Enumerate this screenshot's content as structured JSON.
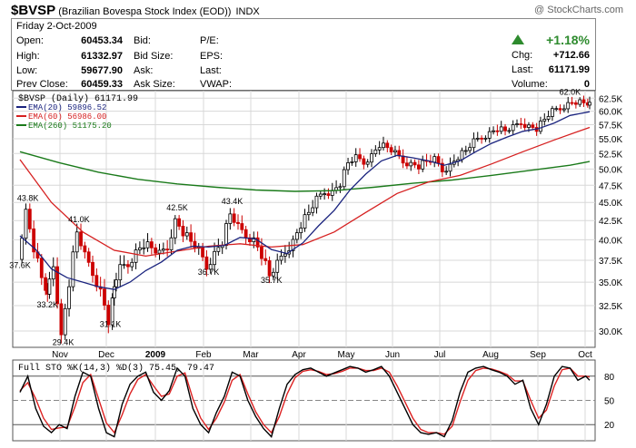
{
  "header": {
    "symbol": "$BVSP",
    "name": "(Brazilian Bovespa Stock Index (EOD))",
    "exchange": "INDX",
    "credit": "@ StockCharts.com"
  },
  "quote": {
    "date": "Friday  2-Oct-2009",
    "open_label": "Open:",
    "open": "60453.34",
    "high_label": "High:",
    "high": "61332.97",
    "low_label": "Low:",
    "low": "59677.90",
    "prev_label": "Prev Close:",
    "prev": "60459.33",
    "bid_label": "Bid:",
    "bidsize_label": "Bid Size:",
    "ask_label": "Ask:",
    "asksize_label": "Ask Size:",
    "pe_label": "P/E:",
    "eps_label": "EPS:",
    "last_label": "Last:",
    "vwap_label": "VWAP:",
    "pct_change": "+1.18%",
    "chg_label": "Chg:",
    "chg": "+712.66",
    "last2_label": "Last:",
    "last": "61171.99",
    "volume_label": "Volume:",
    "volume": "0"
  },
  "colors": {
    "up_candle": "#000000",
    "down_candle": "#cc0000",
    "ema20": "#1a237e",
    "ema60": "#d62020",
    "ema260": "#1a7a1a",
    "sto_k": "#000000",
    "sto_d": "#dd2222",
    "grid": "#d8d8d8"
  },
  "chart_data": [
    {
      "type": "line",
      "title": "$BVSP (Daily) 61171.99",
      "ylim": [
        28.5,
        64.0
      ],
      "yscale": "log",
      "y_ticks": [
        "62.5K",
        "60.0K",
        "57.5K",
        "55.0K",
        "52.5K",
        "50.0K",
        "47.5K",
        "45.0K",
        "42.5K",
        "40.0K",
        "37.5K",
        "35.0K",
        "32.5K",
        "30.0K"
      ],
      "y_tick_values": [
        62.5,
        60.0,
        57.5,
        55.0,
        52.5,
        50.0,
        47.5,
        45.0,
        42.5,
        40.0,
        37.5,
        35.0,
        32.5,
        30.0
      ],
      "x_ticks": [
        "Nov",
        "Dec",
        "2009",
        "Feb",
        "Mar",
        "Apr",
        "May",
        "Jun",
        "Jul",
        "Aug",
        "Sep",
        "Oct"
      ],
      "legend": [
        {
          "name": "EMA(20)",
          "value": "59896.52"
        },
        {
          "name": "EMA(60)",
          "value": "56986.00"
        },
        {
          "name": "EMA(260)",
          "value": "51175.20"
        }
      ],
      "annotations": [
        "43.8K",
        "41.0K",
        "37.6K",
        "33.2K",
        "29.4K",
        "31.1K",
        "42.5K",
        "43.4K",
        "36.7K",
        "35.7K",
        "62.0K"
      ],
      "price": [
        [
          0,
          37.6
        ],
        [
          2,
          43.8
        ],
        [
          4,
          39.0
        ],
        [
          6,
          35.5
        ],
        [
          7,
          33.2
        ],
        [
          9,
          37.0
        ],
        [
          11,
          29.4
        ],
        [
          13,
          35.0
        ],
        [
          15,
          41.0
        ],
        [
          17,
          38.0
        ],
        [
          19,
          36.0
        ],
        [
          21,
          34.0
        ],
        [
          23,
          31.1
        ],
        [
          24,
          34.5
        ],
        [
          26,
          36.5
        ],
        [
          28,
          37.0
        ],
        [
          30,
          38.5
        ],
        [
          32,
          39.5
        ],
        [
          34,
          39.0
        ],
        [
          36,
          38.2
        ],
        [
          38,
          39.0
        ],
        [
          40,
          42.5
        ],
        [
          42,
          41.0
        ],
        [
          44,
          39.8
        ],
        [
          46,
          38.6
        ],
        [
          48,
          36.7
        ],
        [
          50,
          38.3
        ],
        [
          52,
          39.8
        ],
        [
          54,
          43.4
        ],
        [
          56,
          41.6
        ],
        [
          58,
          40.5
        ],
        [
          60,
          40.0
        ],
        [
          62,
          38.2
        ],
        [
          64,
          35.7
        ],
        [
          66,
          37.0
        ],
        [
          68,
          38.5
        ],
        [
          70,
          39.8
        ],
        [
          72,
          42.0
        ],
        [
          74,
          43.6
        ],
        [
          76,
          45.4
        ],
        [
          78,
          46.5
        ],
        [
          80,
          46.5
        ],
        [
          82,
          47.8
        ],
        [
          84,
          51.0
        ],
        [
          86,
          51.8
        ],
        [
          88,
          51.0
        ],
        [
          90,
          52.2
        ],
        [
          92,
          54.0
        ],
        [
          94,
          53.5
        ],
        [
          96,
          52.5
        ],
        [
          98,
          51.2
        ],
        [
          100,
          50.8
        ],
        [
          102,
          50.5
        ],
        [
          104,
          51.2
        ],
        [
          106,
          51.5
        ],
        [
          108,
          49.8
        ],
        [
          110,
          50.5
        ],
        [
          112,
          52.0
        ],
        [
          114,
          53.0
        ],
        [
          116,
          54.5
        ],
        [
          118,
          55.2
        ],
        [
          120,
          56.0
        ],
        [
          122,
          56.8
        ],
        [
          124,
          56.4
        ],
        [
          126,
          57.0
        ],
        [
          128,
          57.8
        ],
        [
          130,
          57.2
        ],
        [
          132,
          56.8
        ],
        [
          134,
          58.5
        ],
        [
          136,
          60.0
        ],
        [
          138,
          60.5
        ],
        [
          140,
          61.4
        ],
        [
          142,
          61.8
        ],
        [
          144,
          61.6
        ],
        [
          145,
          61.2
        ]
      ],
      "ema20": [
        [
          0,
          40.5
        ],
        [
          4,
          38.8
        ],
        [
          8,
          36.5
        ],
        [
          12,
          35.5
        ],
        [
          16,
          35.0
        ],
        [
          20,
          34.5
        ],
        [
          24,
          34.2
        ],
        [
          28,
          35.0
        ],
        [
          32,
          36.3
        ],
        [
          36,
          37.3
        ],
        [
          40,
          38.7
        ],
        [
          44,
          39.2
        ],
        [
          48,
          39.1
        ],
        [
          52,
          39.3
        ],
        [
          56,
          40.3
        ],
        [
          60,
          40.1
        ],
        [
          64,
          38.8
        ],
        [
          68,
          38.3
        ],
        [
          72,
          39.6
        ],
        [
          76,
          41.8
        ],
        [
          80,
          43.9
        ],
        [
          84,
          46.8
        ],
        [
          88,
          49.2
        ],
        [
          92,
          51.3
        ],
        [
          96,
          52.2
        ],
        [
          100,
          51.8
        ],
        [
          104,
          51.3
        ],
        [
          108,
          50.6
        ],
        [
          112,
          51.3
        ],
        [
          116,
          52.8
        ],
        [
          120,
          54.2
        ],
        [
          124,
          55.3
        ],
        [
          128,
          56.3
        ],
        [
          132,
          56.8
        ],
        [
          136,
          57.8
        ],
        [
          140,
          59.2
        ],
        [
          145,
          59.9
        ]
      ],
      "ema60": [
        [
          0,
          51.5
        ],
        [
          8,
          45.0
        ],
        [
          16,
          41.0
        ],
        [
          24,
          38.7
        ],
        [
          32,
          38.0
        ],
        [
          40,
          38.6
        ],
        [
          48,
          39.2
        ],
        [
          56,
          39.5
        ],
        [
          64,
          39.1
        ],
        [
          72,
          39.4
        ],
        [
          80,
          41.0
        ],
        [
          88,
          43.6
        ],
        [
          96,
          46.3
        ],
        [
          104,
          48.0
        ],
        [
          112,
          49.0
        ],
        [
          120,
          50.8
        ],
        [
          128,
          52.8
        ],
        [
          136,
          54.8
        ],
        [
          145,
          57.0
        ]
      ],
      "ema260": [
        [
          0,
          52.8
        ],
        [
          10,
          51.0
        ],
        [
          20,
          49.5
        ],
        [
          30,
          48.4
        ],
        [
          40,
          47.7
        ],
        [
          50,
          47.2
        ],
        [
          60,
          46.8
        ],
        [
          70,
          46.6
        ],
        [
          80,
          46.7
        ],
        [
          90,
          47.2
        ],
        [
          100,
          47.8
        ],
        [
          110,
          48.3
        ],
        [
          120,
          49.0
        ],
        [
          130,
          49.8
        ],
        [
          140,
          50.6
        ],
        [
          145,
          51.2
        ]
      ]
    },
    {
      "type": "line",
      "title": "Full STO %K(14,3) %D(3) 75.45, 79.47",
      "ylim": [
        0,
        100
      ],
      "y_ticks": [
        "80",
        "50",
        "20"
      ],
      "y_tick_values": [
        80,
        50,
        20
      ],
      "series_k": [
        [
          0,
          60
        ],
        [
          2,
          80
        ],
        [
          4,
          40
        ],
        [
          6,
          18
        ],
        [
          8,
          10
        ],
        [
          10,
          20
        ],
        [
          12,
          15
        ],
        [
          14,
          55
        ],
        [
          16,
          85
        ],
        [
          18,
          80
        ],
        [
          20,
          40
        ],
        [
          22,
          10
        ],
        [
          24,
          5
        ],
        [
          26,
          45
        ],
        [
          28,
          70
        ],
        [
          30,
          80
        ],
        [
          32,
          85
        ],
        [
          34,
          60
        ],
        [
          36,
          50
        ],
        [
          38,
          62
        ],
        [
          40,
          90
        ],
        [
          42,
          80
        ],
        [
          44,
          40
        ],
        [
          46,
          20
        ],
        [
          48,
          10
        ],
        [
          50,
          35
        ],
        [
          52,
          55
        ],
        [
          54,
          85
        ],
        [
          56,
          80
        ],
        [
          58,
          50
        ],
        [
          60,
          30
        ],
        [
          62,
          15
        ],
        [
          64,
          5
        ],
        [
          66,
          40
        ],
        [
          68,
          70
        ],
        [
          70,
          82
        ],
        [
          72,
          88
        ],
        [
          74,
          90
        ],
        [
          76,
          85
        ],
        [
          78,
          80
        ],
        [
          80,
          84
        ],
        [
          82,
          88
        ],
        [
          84,
          92
        ],
        [
          86,
          90
        ],
        [
          88,
          85
        ],
        [
          90,
          88
        ],
        [
          92,
          92
        ],
        [
          94,
          80
        ],
        [
          96,
          60
        ],
        [
          98,
          40
        ],
        [
          100,
          20
        ],
        [
          102,
          10
        ],
        [
          104,
          8
        ],
        [
          106,
          10
        ],
        [
          108,
          5
        ],
        [
          110,
          25
        ],
        [
          112,
          60
        ],
        [
          114,
          85
        ],
        [
          116,
          90
        ],
        [
          118,
          92
        ],
        [
          120,
          88
        ],
        [
          122,
          85
        ],
        [
          124,
          80
        ],
        [
          126,
          70
        ],
        [
          128,
          75
        ],
        [
          130,
          40
        ],
        [
          132,
          20
        ],
        [
          134,
          45
        ],
        [
          136,
          80
        ],
        [
          138,
          92
        ],
        [
          140,
          90
        ],
        [
          142,
          75
        ],
        [
          144,
          80
        ],
        [
          145,
          75
        ]
      ],
      "series_d": [
        [
          0,
          62
        ],
        [
          2,
          72
        ],
        [
          4,
          52
        ],
        [
          6,
          28
        ],
        [
          8,
          14
        ],
        [
          10,
          16
        ],
        [
          12,
          17
        ],
        [
          14,
          42
        ],
        [
          16,
          72
        ],
        [
          18,
          82
        ],
        [
          20,
          52
        ],
        [
          22,
          22
        ],
        [
          24,
          10
        ],
        [
          26,
          32
        ],
        [
          28,
          58
        ],
        [
          30,
          76
        ],
        [
          32,
          82
        ],
        [
          34,
          68
        ],
        [
          36,
          55
        ],
        [
          38,
          58
        ],
        [
          40,
          80
        ],
        [
          42,
          84
        ],
        [
          44,
          52
        ],
        [
          46,
          28
        ],
        [
          48,
          14
        ],
        [
          50,
          28
        ],
        [
          52,
          48
        ],
        [
          54,
          75
        ],
        [
          56,
          82
        ],
        [
          58,
          58
        ],
        [
          60,
          36
        ],
        [
          62,
          20
        ],
        [
          64,
          10
        ],
        [
          66,
          30
        ],
        [
          68,
          58
        ],
        [
          70,
          78
        ],
        [
          72,
          86
        ],
        [
          74,
          88
        ],
        [
          76,
          86
        ],
        [
          78,
          82
        ],
        [
          80,
          83
        ],
        [
          82,
          86
        ],
        [
          84,
          90
        ],
        [
          86,
          90
        ],
        [
          88,
          87
        ],
        [
          90,
          87
        ],
        [
          92,
          90
        ],
        [
          94,
          85
        ],
        [
          96,
          68
        ],
        [
          98,
          48
        ],
        [
          100,
          28
        ],
        [
          102,
          14
        ],
        [
          104,
          10
        ],
        [
          106,
          10
        ],
        [
          108,
          8
        ],
        [
          110,
          18
        ],
        [
          112,
          48
        ],
        [
          114,
          75
        ],
        [
          116,
          87
        ],
        [
          118,
          90
        ],
        [
          120,
          89
        ],
        [
          122,
          86
        ],
        [
          124,
          82
        ],
        [
          126,
          74
        ],
        [
          128,
          74
        ],
        [
          130,
          50
        ],
        [
          132,
          28
        ],
        [
          134,
          38
        ],
        [
          136,
          68
        ],
        [
          138,
          88
        ],
        [
          140,
          90
        ],
        [
          142,
          80
        ],
        [
          144,
          80
        ],
        [
          145,
          79
        ]
      ]
    }
  ]
}
